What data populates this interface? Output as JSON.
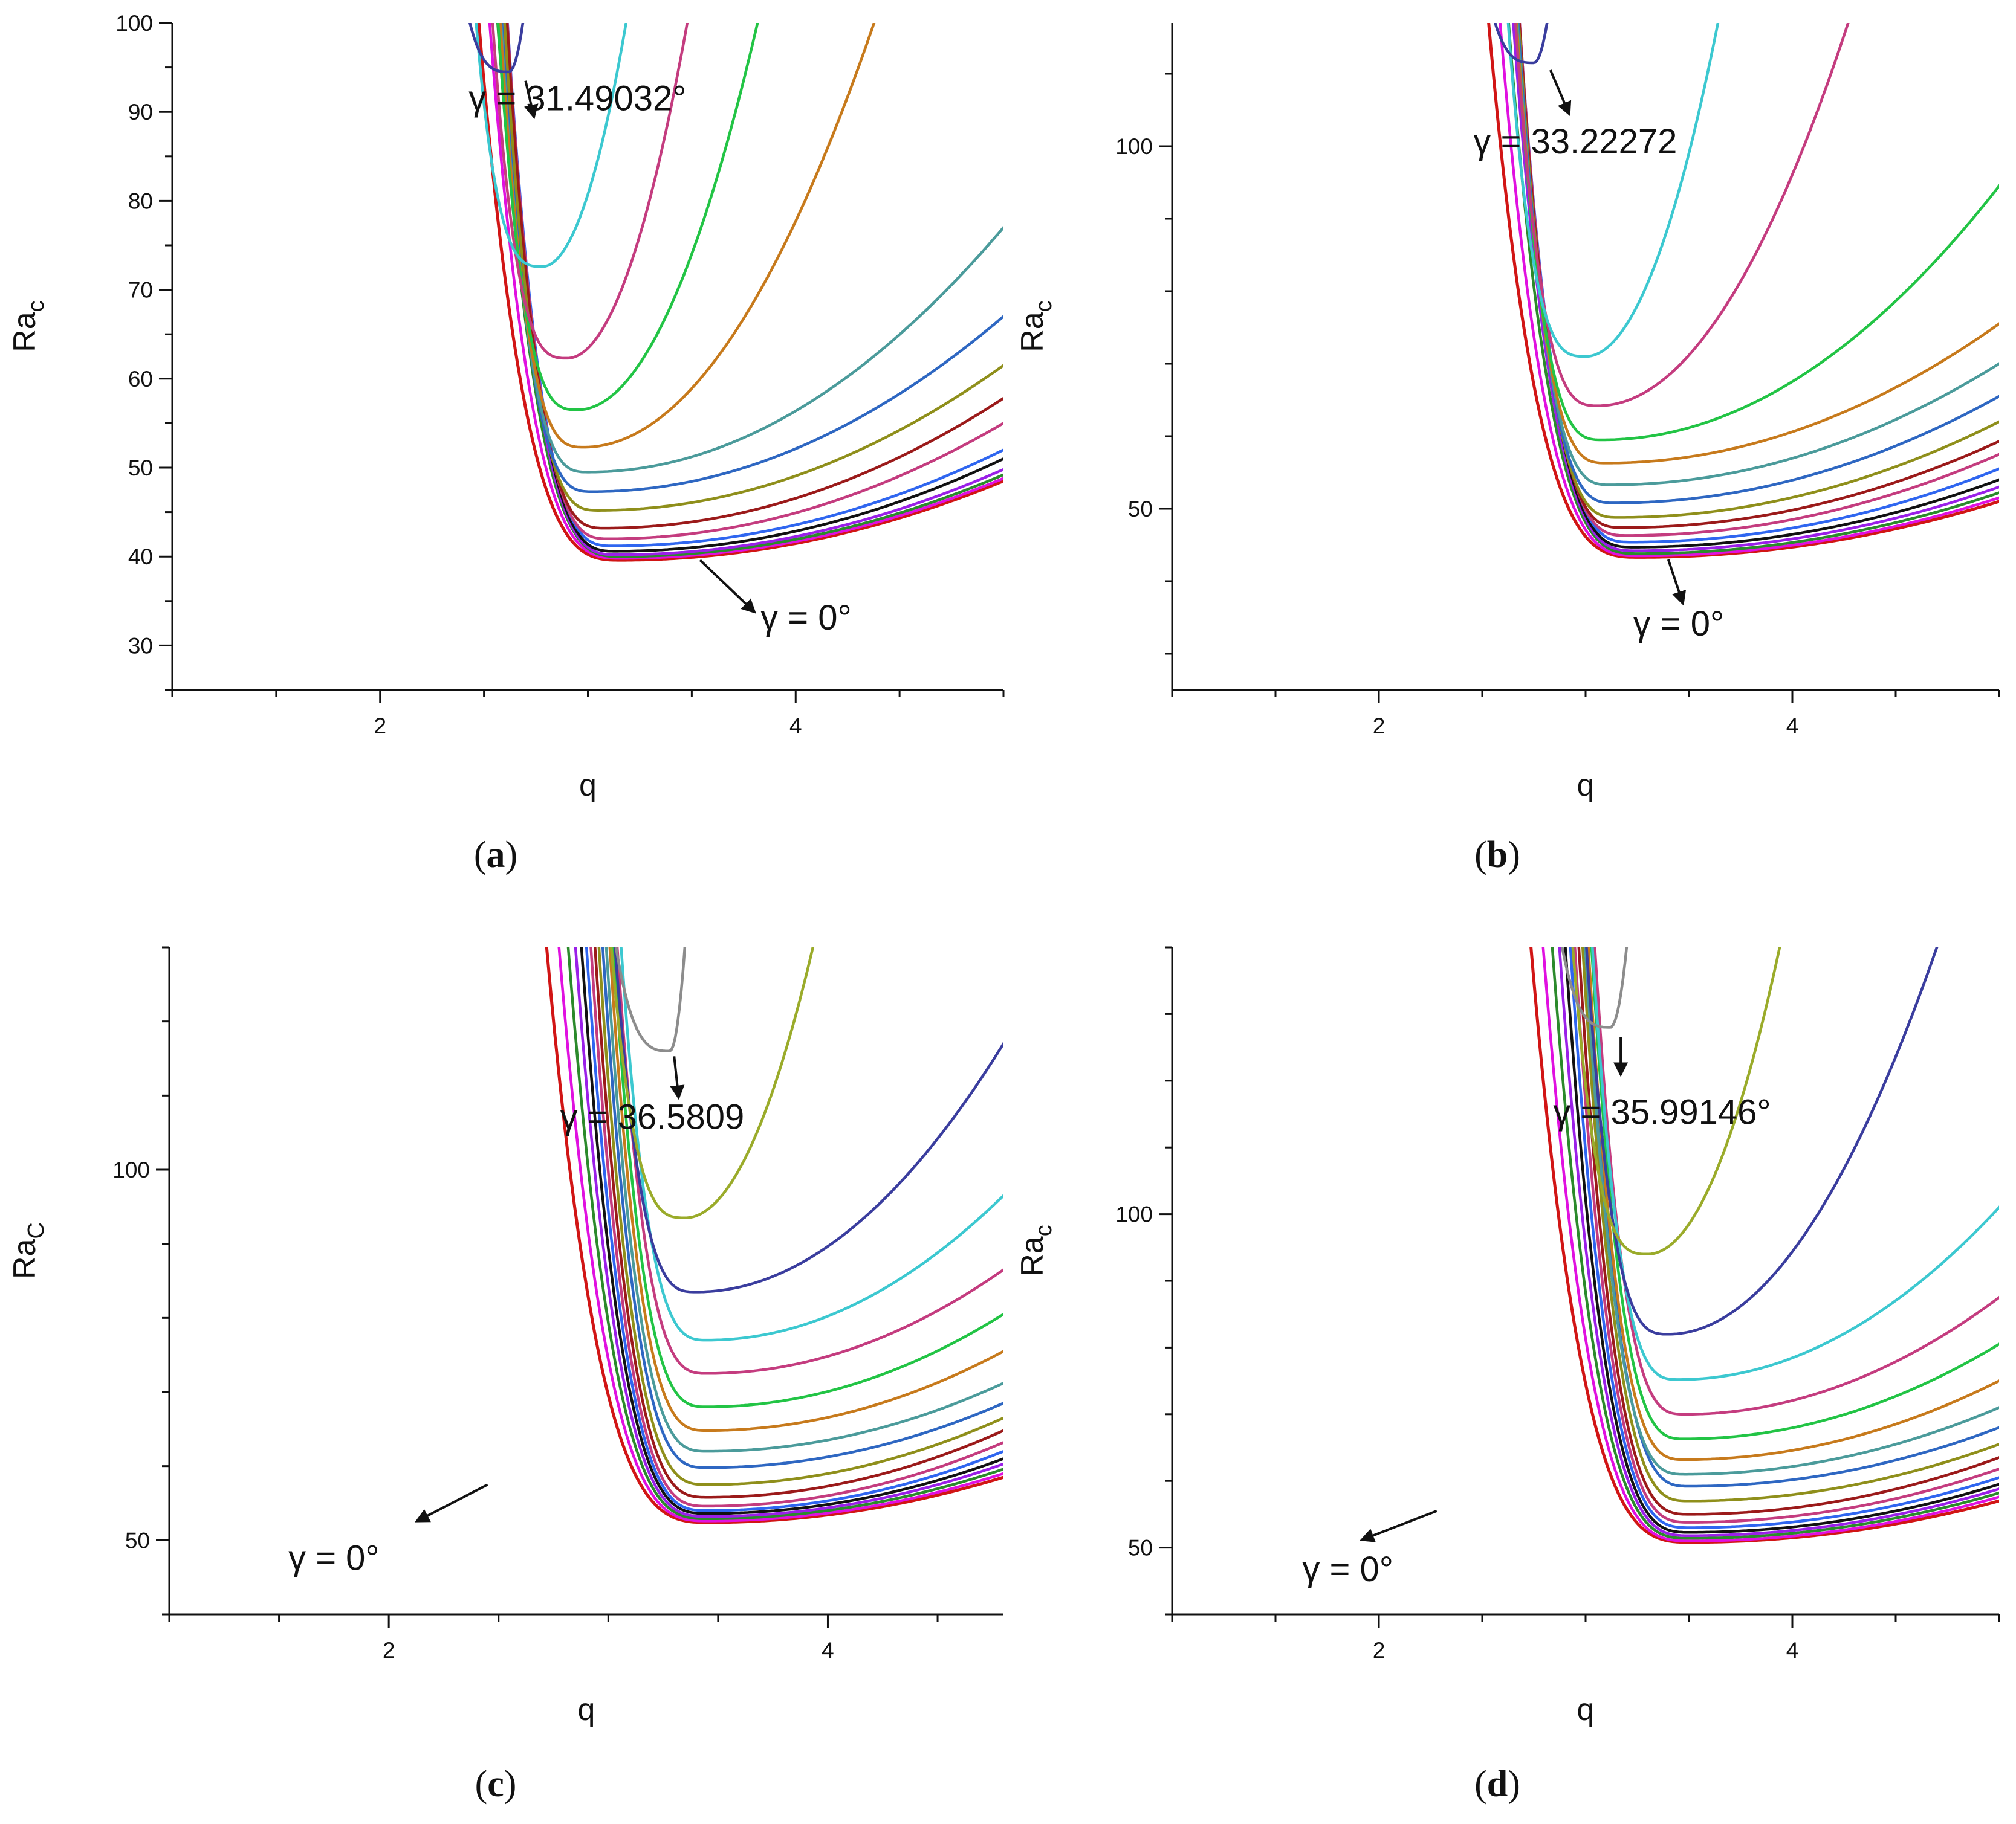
{
  "colors": [
    "#d11515",
    "#e010e0",
    "#2b8a2b",
    "#9a20e8",
    "#111111",
    "#2f66f0",
    "#9b1a1a",
    "#8f8f1b",
    "#1f9aa8",
    "#2e67c2",
    "#4b9b9b",
    "#c77a1c",
    "#22c445",
    "#c43c7f",
    "#3cc8d0",
    "#3a3d9e",
    "#9aab2a",
    "#8c8c8c"
  ],
  "panels": [
    {
      "caption_paren_open": "(",
      "caption_letter": "a",
      "caption_paren_close": ")",
      "chart_data": {
        "type": "line",
        "xlabel": "q",
        "ylabel_main": "Ra",
        "ylabel_sub": "c",
        "xlim": [
          1.0,
          5.0
        ],
        "ylim": [
          25,
          100
        ],
        "xticks": [
          {
            "v": 2,
            "label": "2"
          },
          {
            "v": 4,
            "label": "4"
          }
        ],
        "yticks": [
          {
            "v": 30,
            "label": "30"
          },
          {
            "v": 40,
            "label": "40"
          },
          {
            "v": 50,
            "label": "50"
          },
          {
            "v": 60,
            "label": "60"
          },
          {
            "v": 70,
            "label": "70"
          },
          {
            "v": 80,
            "label": "80"
          },
          {
            "v": 90,
            "label": "90"
          },
          {
            "v": 100,
            "label": "100"
          }
        ],
        "yminor_step": 5,
        "series": [
          {
            "name": "γ = 0°",
            "q_min": 3.15,
            "ra_min": 39.6,
            "right_value": 48.5,
            "color": "#d11515"
          },
          {
            "name": "curve 2",
            "q_min": 3.15,
            "ra_min": 39.8,
            "right_value": 48.8,
            "color": "#e010e0"
          },
          {
            "name": "curve 3",
            "q_min": 3.15,
            "ra_min": 40.0,
            "right_value": 49.2,
            "color": "#2b8a2b"
          },
          {
            "name": "curve 4",
            "q_min": 3.14,
            "ra_min": 40.2,
            "right_value": 49.8,
            "color": "#9a20e8"
          },
          {
            "name": "curve 5",
            "q_min": 3.13,
            "ra_min": 40.6,
            "right_value": 51.0,
            "color": "#111111"
          },
          {
            "name": "curve 6",
            "q_min": 3.12,
            "ra_min": 41.2,
            "right_value": 52.0,
            "color": "#2f66f0"
          },
          {
            "name": "curve 7",
            "q_min": 3.1,
            "ra_min": 42.0,
            "right_value": 55.0,
            "color": "#c43c7f"
          },
          {
            "name": "curve 8",
            "q_min": 3.08,
            "ra_min": 43.2,
            "right_value": 57.8,
            "color": "#9b1a1a"
          },
          {
            "name": "curve 9",
            "q_min": 3.05,
            "ra_min": 45.2,
            "right_value": 61.5,
            "color": "#8f8f1b"
          },
          {
            "name": "curve 10",
            "q_min": 3.02,
            "ra_min": 47.3,
            "right_value": 67.0,
            "color": "#2e67c2"
          },
          {
            "name": "curve 11",
            "q_min": 3.0,
            "ra_min": 49.5,
            "right_value": 77.0,
            "color": "#4b9b9b"
          },
          {
            "name": "curve 12",
            "q_min": 2.98,
            "ra_min": 52.3,
            "right_value": 152.0,
            "color": "#c77a1c"
          },
          {
            "name": "curve 13",
            "q_min": 2.95,
            "ra_min": 56.5,
            "right_value": 300.0,
            "color": "#22c445"
          },
          {
            "name": "curve 14",
            "q_min": 2.9,
            "ra_min": 62.3,
            "right_value": 560.0,
            "color": "#c43c7f"
          },
          {
            "name": "curve 15",
            "q_min": 2.78,
            "ra_min": 72.6,
            "right_value": 900.0,
            "color": "#3cc8d0"
          },
          {
            "name": "γ = 31.49032°",
            "q_min": 2.62,
            "ra_min": 94.5,
            "right_value": 7000.0,
            "color": "#3a3d9e"
          }
        ],
        "annotations": [
          {
            "text": "γ = 31.49032°",
            "tx": 2.95,
            "ty": 90.2,
            "ax1": 2.7,
            "ay1": 93.5,
            "ax2": 2.74,
            "ay2": 89.5,
            "fs": 52
          },
          {
            "text": "γ = 0°",
            "tx": 4.05,
            "ty": 31.8,
            "ax1": 3.54,
            "ay1": 39.6,
            "ax2": 3.8,
            "ay2": 33.8,
            "fs": 64
          }
        ]
      }
    },
    {
      "caption_paren_open": "(",
      "caption_letter": "b",
      "caption_paren_close": ")",
      "chart_data": {
        "type": "line",
        "xlabel": "q",
        "ylabel_main": "Ra",
        "ylabel_sub": "c",
        "xlim": [
          1.0,
          5.0
        ],
        "ylim": [
          25,
          117
        ],
        "xticks": [
          {
            "v": 2,
            "label": "2"
          },
          {
            "v": 4,
            "label": "4"
          }
        ],
        "yticks": [
          {
            "v": 50,
            "label": "50"
          },
          {
            "v": 100,
            "label": "100"
          }
        ],
        "yminor_step": 10,
        "series": [
          {
            "name": "γ = 0°",
            "q_min": 3.25,
            "ra_min": 43.3,
            "right_value": 51.0,
            "color": "#d11515"
          },
          {
            "name": "curve 2",
            "q_min": 3.25,
            "ra_min": 43.5,
            "right_value": 51.5,
            "color": "#e010e0"
          },
          {
            "name": "curve 3",
            "q_min": 3.25,
            "ra_min": 43.8,
            "right_value": 52.2,
            "color": "#2b8a2b"
          },
          {
            "name": "curve 4",
            "q_min": 3.24,
            "ra_min": 44.2,
            "right_value": 53.0,
            "color": "#9a20e8"
          },
          {
            "name": "curve 5",
            "q_min": 3.23,
            "ra_min": 44.7,
            "right_value": 54.0,
            "color": "#111111"
          },
          {
            "name": "curve 6",
            "q_min": 3.22,
            "ra_min": 45.4,
            "right_value": 55.5,
            "color": "#2f66f0"
          },
          {
            "name": "curve 7",
            "q_min": 3.2,
            "ra_min": 46.3,
            "right_value": 57.5,
            "color": "#c43c7f"
          },
          {
            "name": "curve 8",
            "q_min": 3.18,
            "ra_min": 47.4,
            "right_value": 59.3,
            "color": "#9b1a1a"
          },
          {
            "name": "curve 9",
            "q_min": 3.16,
            "ra_min": 48.8,
            "right_value": 62.0,
            "color": "#8f8f1b"
          },
          {
            "name": "curve 10",
            "q_min": 3.14,
            "ra_min": 50.8,
            "right_value": 65.5,
            "color": "#2e67c2"
          },
          {
            "name": "curve 11",
            "q_min": 3.12,
            "ra_min": 53.3,
            "right_value": 70.0,
            "color": "#4b9b9b"
          },
          {
            "name": "curve 12",
            "q_min": 3.1,
            "ra_min": 56.3,
            "right_value": 75.5,
            "color": "#c77a1c"
          },
          {
            "name": "curve 13",
            "q_min": 3.08,
            "ra_min": 59.5,
            "right_value": 94.5,
            "color": "#22c445"
          },
          {
            "name": "curve 14",
            "q_min": 3.06,
            "ra_min": 64.2,
            "right_value": 200.0,
            "color": "#c43c7f"
          },
          {
            "name": "curve 15",
            "q_min": 3.0,
            "ra_min": 71.0,
            "right_value": 520.0,
            "color": "#3cc8d0"
          },
          {
            "name": "γ = 33.22272",
            "q_min": 2.75,
            "ra_min": 111.5,
            "right_value": 7000.0,
            "color": "#3a3d9e"
          }
        ],
        "annotations": [
          {
            "text": "γ = 33.22272",
            "tx": 2.95,
            "ty": 99.0,
            "ax1": 2.83,
            "ay1": 110.5,
            "ax2": 2.92,
            "ay2": 104.5,
            "fs": 58
          },
          {
            "text": "γ = 0°",
            "tx": 3.45,
            "ty": 32.5,
            "ax1": 3.4,
            "ay1": 43.0,
            "ax2": 3.47,
            "ay2": 37.0,
            "fs": 64
          }
        ]
      }
    },
    {
      "caption_paren_open": "(",
      "caption_letter": "c",
      "caption_paren_close": ")",
      "chart_data": {
        "type": "line",
        "xlabel": "q",
        "ylabel_main": "Ra",
        "ylabel_sub": "C",
        "xlim": [
          1.0,
          4.8
        ],
        "ylim": [
          40,
          130
        ],
        "xticks": [
          {
            "v": 2,
            "label": "2"
          },
          {
            "v": 4,
            "label": "4"
          }
        ],
        "yticks": [
          {
            "v": 50,
            "label": "50"
          },
          {
            "v": 100,
            "label": "100"
          }
        ],
        "yminor_step": 10,
        "series": [
          {
            "name": "γ = 0°",
            "q_min": 3.45,
            "ra_min": 52.4,
            "right_value": 58.5,
            "color": "#d11515"
          },
          {
            "name": "curve 2",
            "q_min": 3.45,
            "ra_min": 52.6,
            "right_value": 59.0,
            "color": "#e010e0"
          },
          {
            "name": "curve 3",
            "q_min": 3.45,
            "ra_min": 52.9,
            "right_value": 59.6,
            "color": "#2b8a2b"
          },
          {
            "name": "curve 4",
            "q_min": 3.45,
            "ra_min": 53.2,
            "right_value": 60.3,
            "color": "#9a20e8"
          },
          {
            "name": "curve 5",
            "q_min": 3.45,
            "ra_min": 53.6,
            "right_value": 61.0,
            "color": "#111111"
          },
          {
            "name": "curve 6",
            "q_min": 3.45,
            "ra_min": 54.0,
            "right_value": 62.0,
            "color": "#2f66f0"
          },
          {
            "name": "curve 7",
            "q_min": 3.45,
            "ra_min": 54.6,
            "right_value": 63.2,
            "color": "#c43c7f"
          },
          {
            "name": "curve 8",
            "q_min": 3.45,
            "ra_min": 55.8,
            "right_value": 64.8,
            "color": "#9b1a1a"
          },
          {
            "name": "curve 9",
            "q_min": 3.45,
            "ra_min": 57.5,
            "right_value": 66.5,
            "color": "#8f8f1b"
          },
          {
            "name": "curve 10",
            "q_min": 3.45,
            "ra_min": 59.8,
            "right_value": 68.5,
            "color": "#2e67c2"
          },
          {
            "name": "curve 11",
            "q_min": 3.45,
            "ra_min": 62.0,
            "right_value": 71.2,
            "color": "#4b9b9b"
          },
          {
            "name": "curve 12",
            "q_min": 3.45,
            "ra_min": 64.8,
            "right_value": 75.5,
            "color": "#c77a1c"
          },
          {
            "name": "curve 13",
            "q_min": 3.45,
            "ra_min": 68.0,
            "right_value": 80.5,
            "color": "#22c445"
          },
          {
            "name": "curve 14",
            "q_min": 3.45,
            "ra_min": 72.5,
            "right_value": 86.5,
            "color": "#c43c7f"
          },
          {
            "name": "curve 15",
            "q_min": 3.45,
            "ra_min": 77.0,
            "right_value": 96.5,
            "color": "#3cc8d0"
          },
          {
            "name": "curve 16",
            "q_min": 3.4,
            "ra_min": 83.5,
            "right_value": 117.0,
            "color": "#3a3d9e"
          },
          {
            "name": "curve 17",
            "q_min": 3.35,
            "ra_min": 93.5,
            "right_value": 320.0,
            "color": "#9aab2a"
          },
          {
            "name": "γ = 36.5809",
            "q_min": 3.28,
            "ra_min": 116.0,
            "right_value": 7000.0,
            "color": "#8c8c8c"
          }
        ],
        "annotations": [
          {
            "text": "γ = 36.5809",
            "tx": 3.2,
            "ty": 105.5,
            "ax1": 3.3,
            "ay1": 115.3,
            "ax2": 3.32,
            "ay2": 109.8,
            "fs": 58
          },
          {
            "text": "γ = 0°",
            "tx": 1.75,
            "ty": 46.0,
            "ax1": 2.45,
            "ay1": 57.5,
            "ax2": 2.13,
            "ay2": 52.6,
            "fs": 64
          }
        ]
      }
    },
    {
      "caption_paren_open": "(",
      "caption_letter": "d",
      "caption_paren_close": ")",
      "chart_data": {
        "type": "line",
        "xlabel": "q",
        "ylabel_main": "Ra",
        "ylabel_sub": "c",
        "xlim": [
          1.0,
          5.0
        ],
        "ylim": [
          40,
          140
        ],
        "xticks": [
          {
            "v": 2,
            "label": "2"
          },
          {
            "v": 4,
            "label": "4"
          }
        ],
        "yticks": [
          {
            "v": 50,
            "label": "50"
          },
          {
            "v": 100,
            "label": "100"
          }
        ],
        "yminor_step": 10,
        "series": [
          {
            "name": "γ = 0°",
            "q_min": 3.5,
            "ra_min": 50.8,
            "right_value": 57.0,
            "color": "#d11515"
          },
          {
            "name": "curve 2",
            "q_min": 3.5,
            "ra_min": 51.0,
            "right_value": 57.6,
            "color": "#e010e0"
          },
          {
            "name": "curve 3",
            "q_min": 3.5,
            "ra_min": 51.4,
            "right_value": 58.2,
            "color": "#2b8a2b"
          },
          {
            "name": "curve 4",
            "q_min": 3.5,
            "ra_min": 51.8,
            "right_value": 58.8,
            "color": "#9a20e8"
          },
          {
            "name": "curve 5",
            "q_min": 3.5,
            "ra_min": 52.3,
            "right_value": 59.5,
            "color": "#111111"
          },
          {
            "name": "curve 6",
            "q_min": 3.5,
            "ra_min": 53.0,
            "right_value": 60.5,
            "color": "#2f66f0"
          },
          {
            "name": "curve 7",
            "q_min": 3.5,
            "ra_min": 53.8,
            "right_value": 61.8,
            "color": "#c43c7f"
          },
          {
            "name": "curve 8",
            "q_min": 3.5,
            "ra_min": 55.0,
            "right_value": 63.5,
            "color": "#9b1a1a"
          },
          {
            "name": "curve 9",
            "q_min": 3.5,
            "ra_min": 57.0,
            "right_value": 65.5,
            "color": "#8f8f1b"
          },
          {
            "name": "curve 10",
            "q_min": 3.5,
            "ra_min": 59.2,
            "right_value": 68.0,
            "color": "#2e67c2"
          },
          {
            "name": "curve 11",
            "q_min": 3.48,
            "ra_min": 61.0,
            "right_value": 71.0,
            "color": "#4b9b9b"
          },
          {
            "name": "curve 12",
            "q_min": 3.48,
            "ra_min": 63.2,
            "right_value": 75.0,
            "color": "#c77a1c"
          },
          {
            "name": "curve 13",
            "q_min": 3.48,
            "ra_min": 66.3,
            "right_value": 80.5,
            "color": "#22c445"
          },
          {
            "name": "curve 14",
            "q_min": 3.48,
            "ra_min": 70.0,
            "right_value": 87.5,
            "color": "#c43c7f"
          },
          {
            "name": "curve 15",
            "q_min": 3.45,
            "ra_min": 75.2,
            "right_value": 101.0,
            "color": "#3cc8d0"
          },
          {
            "name": "curve 16",
            "q_min": 3.4,
            "ra_min": 82.0,
            "right_value": 170.0,
            "color": "#3a3d9e"
          },
          {
            "name": "curve 17",
            "q_min": 3.3,
            "ra_min": 94.0,
            "right_value": 420.0,
            "color": "#9aab2a"
          },
          {
            "name": "γ = 35.99146°",
            "q_min": 3.12,
            "ra_min": 128.0,
            "right_value": 7000.0,
            "color": "#8c8c8c"
          }
        ],
        "annotations": [
          {
            "text": "γ = 35.99146°",
            "tx": 3.37,
            "ty": 113.5,
            "ax1": 3.17,
            "ay1": 126.5,
            "ax2": 3.17,
            "ay2": 121.0,
            "fs": 58
          },
          {
            "text": "γ = 0°",
            "tx": 1.85,
            "ty": 45.0,
            "ax1": 2.28,
            "ay1": 55.5,
            "ax2": 1.92,
            "ay2": 51.2,
            "fs": 64
          }
        ]
      }
    }
  ]
}
